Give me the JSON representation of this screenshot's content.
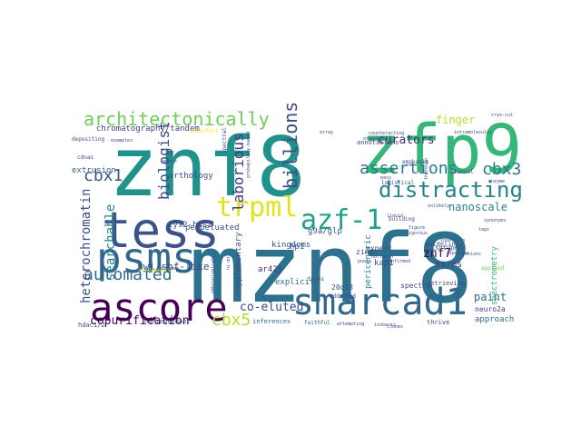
{
  "wordcloud": {
    "words": [
      {
        "text": "mznf8",
        "color": "#2c718e"
      },
      {
        "text": "znf8",
        "color": "#21918c"
      },
      {
        "text": "zfp9",
        "color": "#35b779"
      },
      {
        "text": "tess",
        "color": "#3b528b"
      },
      {
        "text": "psms",
        "color": "#31688e"
      },
      {
        "text": "ascore",
        "color": "#440154"
      },
      {
        "text": "smarcad1",
        "color": "#31688e"
      },
      {
        "text": "trpml",
        "color": "#dfe318"
      },
      {
        "text": "azf-1",
        "color": "#1fa088"
      },
      {
        "text": "architectonically",
        "color": "#6ece58"
      },
      {
        "text": "distracting",
        "color": "#26828e"
      },
      {
        "text": "billions",
        "color": "#3e4a89"
      },
      {
        "text": "assertions",
        "color": "#2a788e"
      },
      {
        "text": "cbx1",
        "color": "#3b528b"
      },
      {
        "text": "cbx3",
        "color": "#2a788e"
      },
      {
        "text": "cbx5",
        "color": "#b5de2b"
      },
      {
        "text": "automated",
        "color": "#31688e"
      },
      {
        "text": "biologist",
        "color": "#3e4a89"
      },
      {
        "text": "laborious",
        "color": "#443983"
      },
      {
        "text": "heterochromatin",
        "color": "#3b528b"
      },
      {
        "text": "searchable",
        "color": "#26828e"
      },
      {
        "text": "copurification",
        "color": "#440154"
      },
      {
        "text": "co-eluted",
        "color": "#3e4a89"
      },
      {
        "text": "curators",
        "color": "#482878"
      },
      {
        "text": "finger",
        "color": "#b5de2b"
      },
      {
        "text": "nanoscale",
        "color": "#26828e"
      },
      {
        "text": "znf7",
        "color": "#440154"
      },
      {
        "text": "paint",
        "color": "#31688e"
      },
      {
        "text": "ms/ms",
        "color": "#443983"
      },
      {
        "text": "swi/snf-like",
        "color": "#3e4a89"
      },
      {
        "text": "chromatography/tandem",
        "color": "#443983"
      },
      {
        "text": "extrusion",
        "color": "#31688e"
      },
      {
        "text": "orthology",
        "color": "#3e4a89"
      },
      {
        "text": "cys2-his2",
        "color": "#3b528b"
      },
      {
        "text": "g9a/glp",
        "color": "#3b528b"
      },
      {
        "text": "ar42j",
        "color": "#472d7b"
      },
      {
        "text": "hp1",
        "color": "#31688e"
      },
      {
        "text": "kap1",
        "color": "#3e4a89"
      },
      {
        "text": "perpetuated",
        "color": "#3e4a89"
      },
      {
        "text": "kingdoms",
        "color": "#3b528b"
      },
      {
        "text": "explicit",
        "color": "#31688e"
      },
      {
        "text": "supplementary",
        "color": "#3b528b"
      },
      {
        "text": "pericentric",
        "color": "#26828e"
      },
      {
        "text": "expert",
        "color": "#3e4a89"
      },
      {
        "text": "zinc",
        "color": "#443983"
      },
      {
        "text": "20q13",
        "color": "#3b528b"
      },
      {
        "text": "spectra",
        "color": "#3e4a89"
      },
      {
        "text": "neuro2a",
        "color": "#443983"
      },
      {
        "text": "approach",
        "color": "#31688e"
      },
      {
        "text": "annotations",
        "color": "#3e4a89"
      },
      {
        "text": "logistical",
        "color": "#3b528b"
      },
      {
        "text": "isotypes",
        "color": "#3b528b"
      },
      {
        "text": "retrieving",
        "color": "#3e4a89"
      },
      {
        "text": "guidelines",
        "color": "#3b528b"
      },
      {
        "text": "emphasis",
        "color": "#3e4a89"
      },
      {
        "text": "manual",
        "color": "#3e4a89"
      },
      {
        "text": "spectrometry",
        "color": "#35b779"
      },
      {
        "text": "inferences",
        "color": "#31688e"
      },
      {
        "text": "faithful",
        "color": "#31688e"
      },
      {
        "text": "thrive",
        "color": "#3e4a89"
      },
      {
        "text": "hdac1/2",
        "color": "#3b528b"
      },
      {
        "text": "nonredundant",
        "color": "#3e4a89"
      },
      {
        "text": "addicted",
        "color": "#3e4a89"
      },
      {
        "text": "trees",
        "color": "#3e4a89"
      },
      {
        "text": "building",
        "color": "#3e4a89"
      },
      {
        "text": "depositing",
        "color": "#3e4a89"
      },
      {
        "text": "cdnas",
        "color": "#3e4a89"
      },
      {
        "text": "imperfect",
        "color": "#fde725"
      },
      {
        "text": "spectral",
        "color": "#3e4a89"
      },
      {
        "text": "embryological",
        "color": "#3e4a89"
      },
      {
        "text": "probability-based",
        "color": "#3e4a89"
      },
      {
        "text": "pipeline",
        "color": "#3e4a89"
      },
      {
        "text": "figure",
        "color": "#3e4a89"
      },
      {
        "text": "applied",
        "color": "#6ece58"
      },
      {
        "text": "northern",
        "color": "#3e4a89"
      },
      {
        "text": "attempting",
        "color": "#3e4a89"
      },
      {
        "text": "isobaric",
        "color": "#3e4a89"
      },
      {
        "text": "clones",
        "color": "#3e4a89"
      },
      {
        "text": "counteracting",
        "color": "#3e4a89"
      },
      {
        "text": "vigorous",
        "color": "#3e4a89"
      },
      {
        "text": "organisms",
        "color": "#3e4a89"
      },
      {
        "text": "intramolecular",
        "color": "#3e4a89"
      },
      {
        "text": "array",
        "color": "#3e4a89"
      },
      {
        "text": "examples",
        "color": "#3e4a89"
      },
      {
        "text": "versus",
        "color": "#3e4a89"
      },
      {
        "text": "unlikely",
        "color": "#3e4a89"
      },
      {
        "text": "thorough",
        "color": "#3e4a89"
      },
      {
        "text": "cryo-cut",
        "color": "#3e4a89"
      },
      {
        "text": "tags",
        "color": "#3e4a89"
      },
      {
        "text": "fusions",
        "color": "#3e4a89"
      },
      {
        "text": "synonyms",
        "color": "#3e4a89"
      },
      {
        "text": "hi-mi",
        "color": "#3e4a89"
      },
      {
        "text": "peptides",
        "color": "#3e4a89"
      },
      {
        "text": "alignments",
        "color": "#b5de2b"
      },
      {
        "text": "confirmed",
        "color": "#3e4a89"
      },
      {
        "text": "enzyme",
        "color": "#3e4a89"
      },
      {
        "text": "insertion",
        "color": "#3e4a89"
      },
      {
        "text": "easy",
        "color": "#3e4a89"
      },
      {
        "text": "pools",
        "color": "#3e4a89"
      },
      {
        "text": "liquid",
        "color": "#3e4a89"
      }
    ]
  }
}
